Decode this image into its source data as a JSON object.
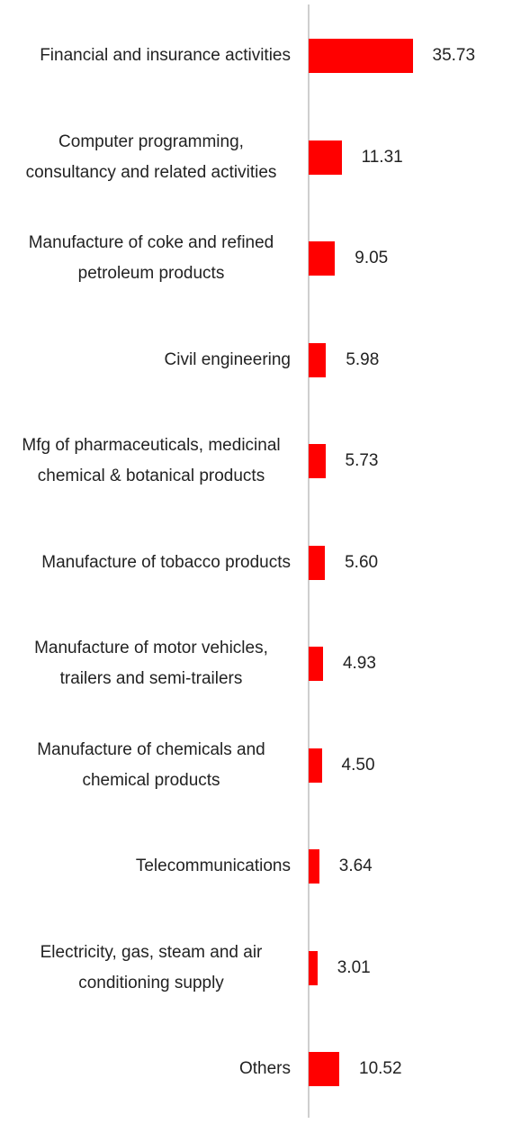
{
  "chart_data": {
    "type": "bar",
    "orientation": "horizontal",
    "categories": [
      "Financial and insurance activities",
      "Computer programming, consultancy and related activities",
      "Manufacture of coke and refined petroleum products",
      "Civil engineering",
      "Mfg of pharmaceuticals, medicinal chemical & botanical products",
      "Manufacture of tobacco products",
      "Manufacture of motor vehicles, trailers and semi-trailers",
      "Manufacture of chemicals and chemical products",
      "Telecommunications",
      "Electricity, gas, steam and air conditioning supply",
      "Others"
    ],
    "values": [
      35.73,
      11.31,
      9.05,
      5.98,
      5.73,
      5.6,
      4.93,
      4.5,
      3.64,
      3.01,
      10.52
    ],
    "value_labels": [
      "35.73",
      "11.31",
      "9.05",
      "5.98",
      "5.73",
      "5.60",
      "4.93",
      "4.50",
      "3.64",
      "3.01",
      "10.52"
    ],
    "color": "#ff0000",
    "xlim": [
      0,
      73
    ]
  }
}
